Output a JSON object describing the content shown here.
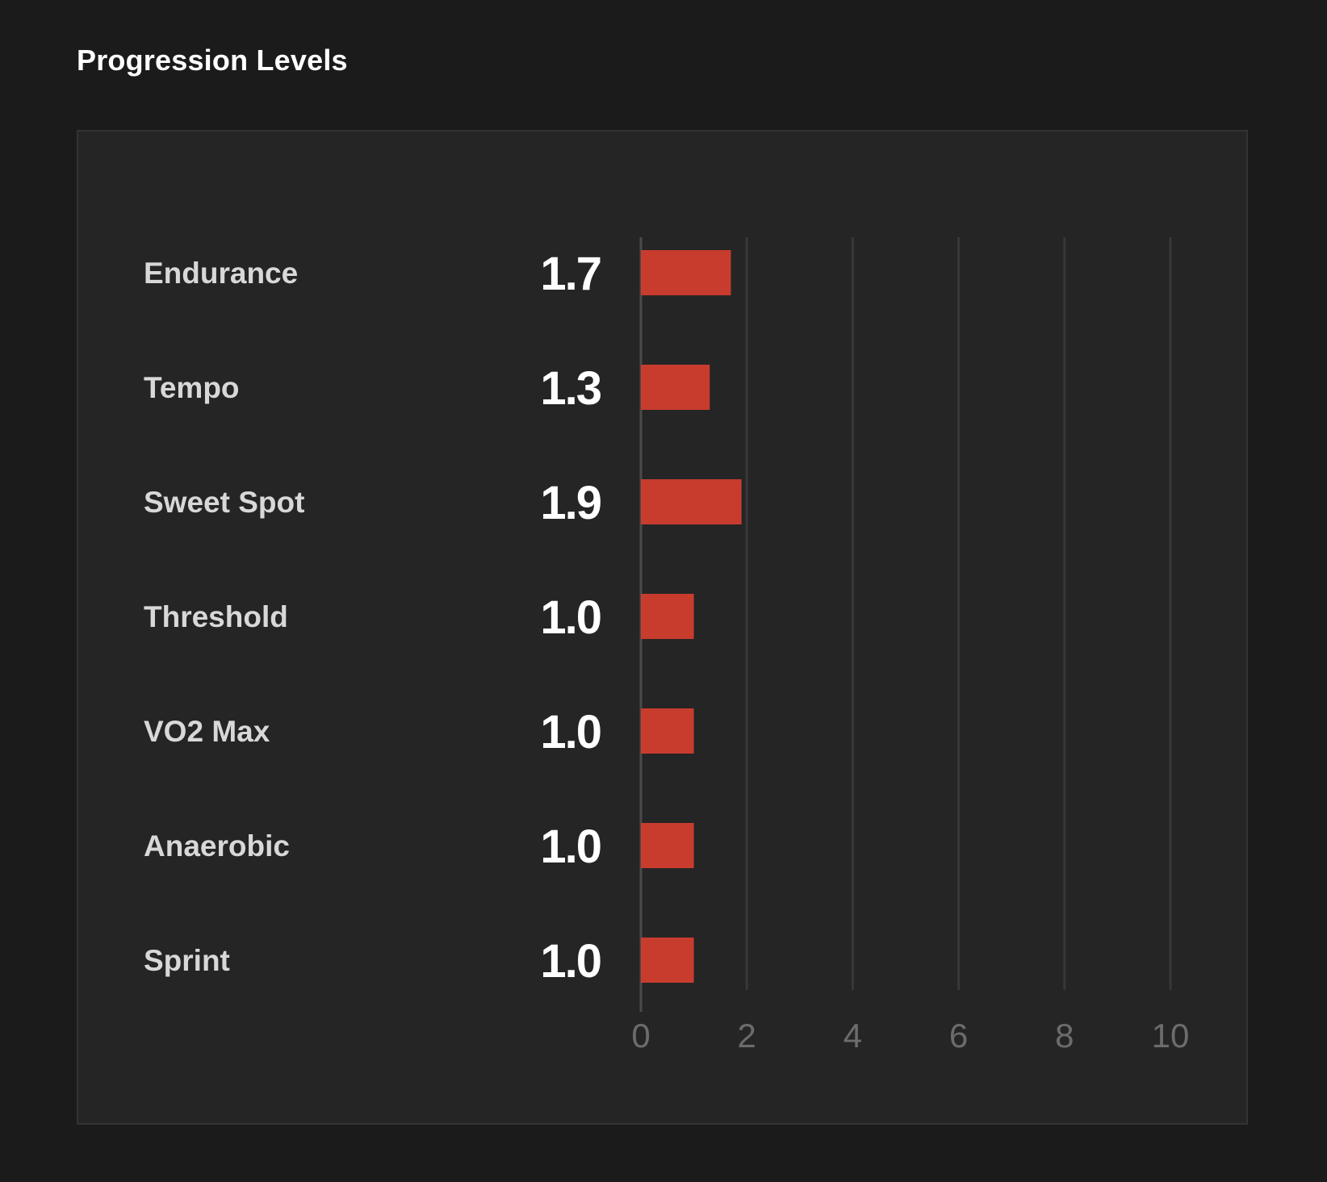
{
  "header": {
    "title": "Progression Levels"
  },
  "colors": {
    "bar": "#c83c2e",
    "grid": "#383838",
    "axis": "#4a4a4a",
    "background": "#1b1b1b",
    "panel": "#252525"
  },
  "chart_data": {
    "type": "bar",
    "orientation": "horizontal",
    "title": "",
    "xlabel": "",
    "ylabel": "",
    "categories": [
      "Endurance",
      "Tempo",
      "Sweet Spot",
      "Threshold",
      "VO2 Max",
      "Anaerobic",
      "Sprint"
    ],
    "values": [
      1.7,
      1.3,
      1.9,
      1.0,
      1.0,
      1.0,
      1.0
    ],
    "value_labels": [
      "1.7",
      "1.3",
      "1.9",
      "1.0",
      "1.0",
      "1.0",
      "1.0"
    ],
    "xlim": [
      0,
      10
    ],
    "xticks": [
      0,
      2,
      4,
      6,
      8,
      10
    ],
    "xtick_labels": [
      "0",
      "2",
      "4",
      "6",
      "8",
      "10"
    ],
    "grid": true,
    "legend": "none"
  }
}
